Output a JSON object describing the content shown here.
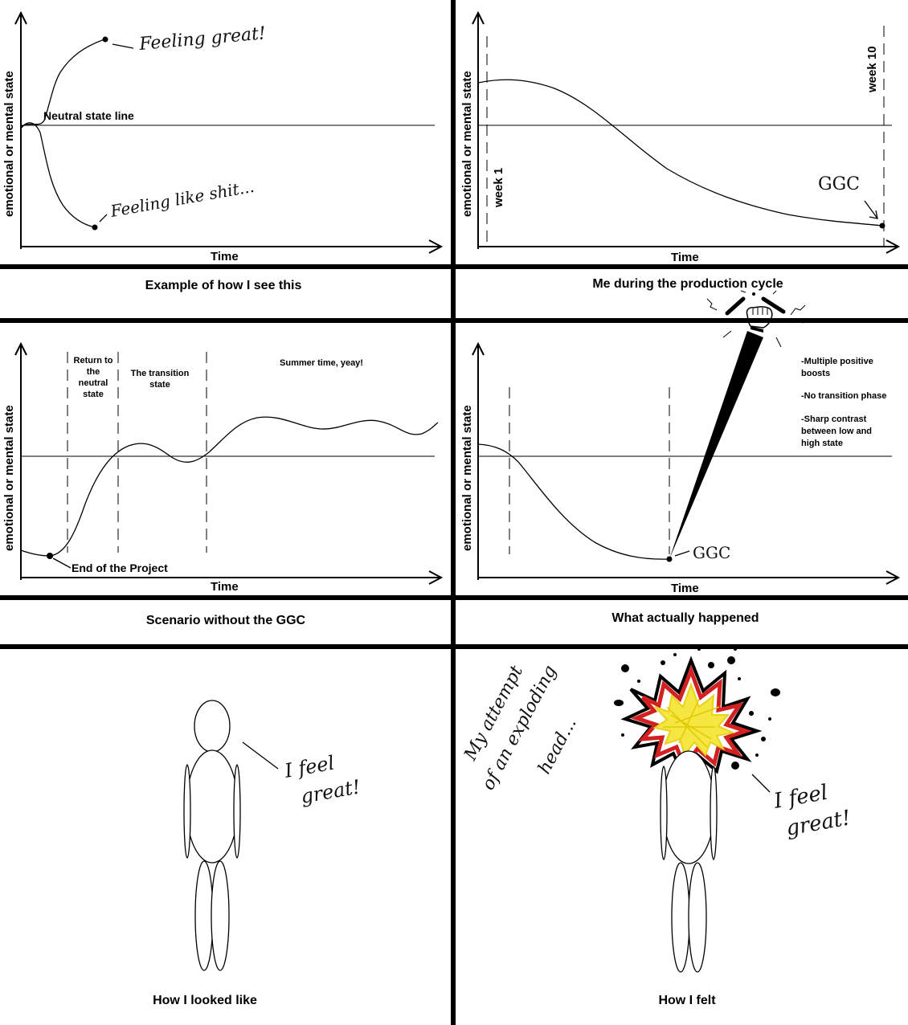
{
  "panel1": {
    "y_label": "emotional or mental state",
    "x_label": "Time",
    "neutral_label": "Neutral state line",
    "feeling_great": "Feeling great!",
    "feeling_bad": "Feeling like shit...",
    "caption": "Example of how I see this"
  },
  "panel2": {
    "y_label": "emotional or mental state",
    "x_label": "Time",
    "week_start": "week 1",
    "week_end": "week 10",
    "ggc": "GGC",
    "caption": "Me during the production cycle"
  },
  "panel3": {
    "y_label": "emotional or mental state",
    "x_label": "Time",
    "phase_return": [
      "Return to",
      "the",
      "neutral",
      "state"
    ],
    "phase_transition": [
      "The transition",
      "state"
    ],
    "phase_summer": "Summer time, yeay!",
    "end_project": "End of the Project",
    "caption": "Scenario without the GGC"
  },
  "panel4": {
    "y_label": "emotional or mental state",
    "x_label": "Time",
    "ggc": "GGC",
    "notes": [
      [
        "-Multiple positive",
        "boosts"
      ],
      [
        "-No transition phase"
      ],
      [
        "-Sharp contrast",
        "between low and",
        "high state"
      ]
    ],
    "caption": "What actually happened"
  },
  "panel5": {
    "speech": [
      "I feel",
      "great!"
    ],
    "caption": "How I looked like"
  },
  "panel6": {
    "side_note": [
      "My attempt",
      "of an exploding",
      "head..."
    ],
    "speech": [
      "I feel",
      "great!"
    ],
    "caption": "How I felt"
  },
  "colors": {
    "ink": "#000000",
    "background": "#ffffff",
    "explosion_red": "#d32020",
    "explosion_yellow": "#f5e642"
  }
}
